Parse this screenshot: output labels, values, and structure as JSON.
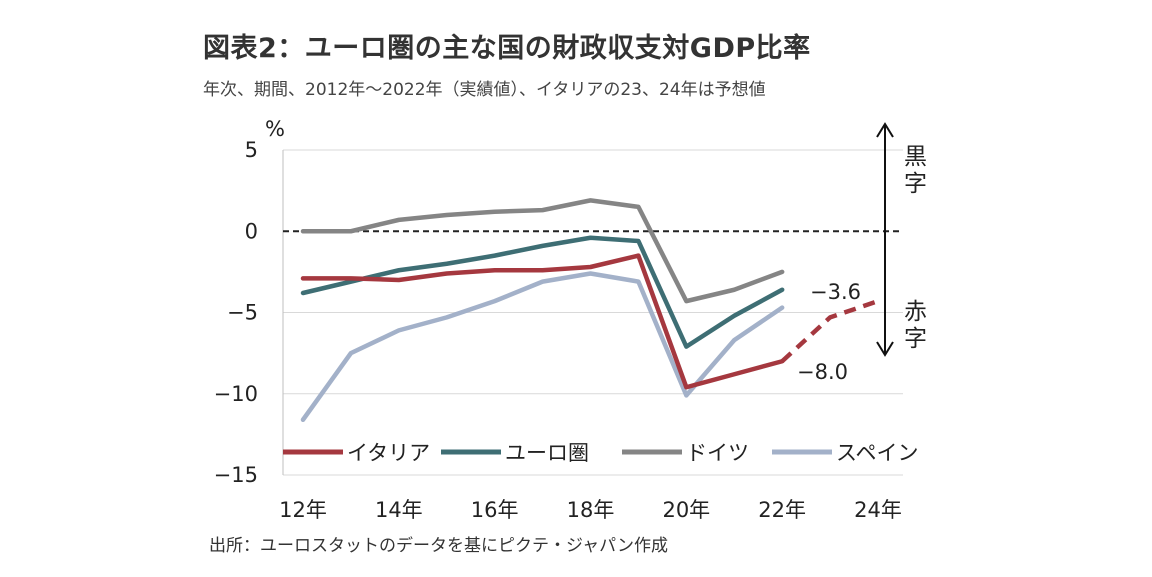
{
  "title": "図表2：ユーロ圏の主な国の財政収支対GDP比率",
  "subtitle": "年次、期間、2012年～2022年（実績値）、イタリアの23、24年は予想値",
  "source": "出所：ユーロスタットのデータを基にピクテ・ジャパン作成",
  "side_labels": {
    "surplus": "黒字",
    "deficit": "赤字"
  },
  "chart_data": {
    "type": "line",
    "title": "図表2：ユーロ圏の主な国の財政収支対GDP比率",
    "ylabel": "%",
    "xlabel": "",
    "ylim": [
      -15,
      5
    ],
    "yticks": [
      "5",
      "0",
      "-5",
      "-10",
      "-15"
    ],
    "x": [
      2012,
      2013,
      2014,
      2015,
      2016,
      2017,
      2018,
      2019,
      2020,
      2021,
      2022,
      2023,
      2024
    ],
    "xtick_labels": [
      "12年",
      "14年",
      "16年",
      "18年",
      "20年",
      "22年",
      "24年"
    ],
    "grid": "horizontal",
    "series": [
      {
        "name": "イタリア",
        "color": "#a5383f",
        "values": [
          -2.9,
          -2.9,
          -3.0,
          -2.6,
          -2.4,
          -2.4,
          -2.2,
          -1.5,
          -9.6,
          -8.8,
          -8.0,
          null,
          null
        ],
        "forecast": [
          -8.0,
          -5.3,
          -4.3
        ],
        "forecast_x": [
          2022,
          2023,
          2024
        ]
      },
      {
        "name": "ユーロ圏",
        "color": "#3e6e74",
        "values": [
          -3.8,
          -3.1,
          -2.4,
          -2.0,
          -1.5,
          -0.9,
          -0.4,
          -0.6,
          -7.1,
          -5.2,
          -3.6,
          null,
          null
        ]
      },
      {
        "name": "ドイツ",
        "color": "#858585",
        "values": [
          0.0,
          0.0,
          0.7,
          1.0,
          1.2,
          1.3,
          1.9,
          1.5,
          -4.3,
          -3.6,
          -2.5,
          null,
          null
        ]
      },
      {
        "name": "スペイン",
        "color": "#a3b1c9",
        "values": [
          -11.6,
          -7.5,
          -6.1,
          -5.3,
          -4.3,
          -3.1,
          -2.6,
          -3.1,
          -10.1,
          -6.7,
          -4.7,
          null,
          null
        ]
      }
    ],
    "annotations": [
      "-3.6",
      "-8.0"
    ],
    "zero_line": "dashed"
  }
}
